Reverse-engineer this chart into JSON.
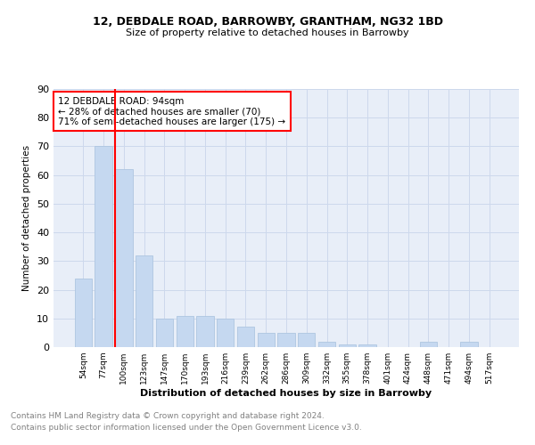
{
  "title1": "12, DEBDALE ROAD, BARROWBY, GRANTHAM, NG32 1BD",
  "title2": "Size of property relative to detached houses in Barrowby",
  "xlabel": "Distribution of detached houses by size in Barrowby",
  "ylabel": "Number of detached properties",
  "footer_line1": "Contains HM Land Registry data © Crown copyright and database right 2024.",
  "footer_line2": "Contains public sector information licensed under the Open Government Licence v3.0.",
  "categories": [
    "54sqm",
    "77sqm",
    "100sqm",
    "123sqm",
    "147sqm",
    "170sqm",
    "193sqm",
    "216sqm",
    "239sqm",
    "262sqm",
    "286sqm",
    "309sqm",
    "332sqm",
    "355sqm",
    "378sqm",
    "401sqm",
    "424sqm",
    "448sqm",
    "471sqm",
    "494sqm",
    "517sqm"
  ],
  "values": [
    24,
    70,
    62,
    32,
    10,
    11,
    11,
    10,
    7,
    5,
    5,
    5,
    2,
    1,
    1,
    0,
    0,
    2,
    0,
    2,
    0
  ],
  "bar_color": "#c5d8f0",
  "bar_edge_color": "#aec6e0",
  "annotation_text": "12 DEBDALE ROAD: 94sqm\n← 28% of detached houses are smaller (70)\n71% of semi-detached houses are larger (175) →",
  "annotation_box_color": "white",
  "annotation_box_edge": "red",
  "vline_color": "red",
  "vline_x_index": 2,
  "ylim": [
    0,
    90
  ],
  "yticks": [
    0,
    10,
    20,
    30,
    40,
    50,
    60,
    70,
    80,
    90
  ],
  "grid_color": "#cdd8ec",
  "background_color": "#e8eef8"
}
